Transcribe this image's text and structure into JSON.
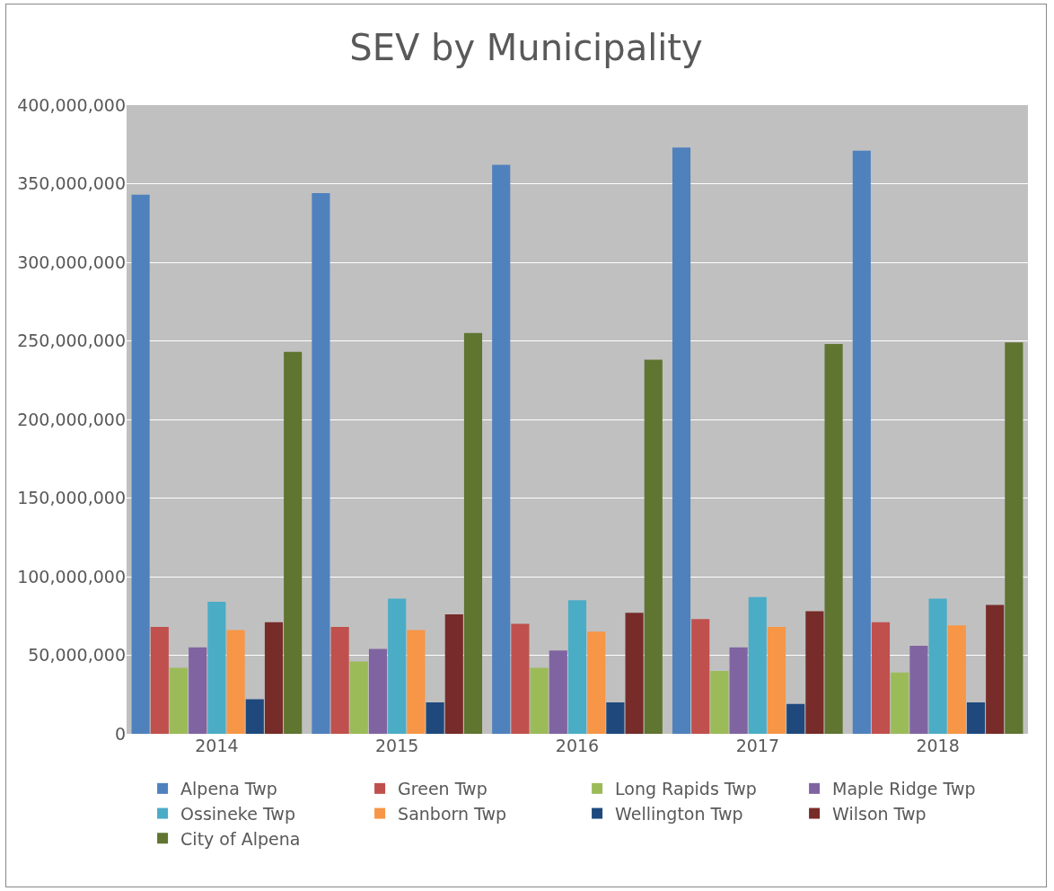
{
  "chart_data": {
    "type": "bar",
    "title": "SEV by Municipality",
    "categories": [
      "2014",
      "2015",
      "2016",
      "2017",
      "2018"
    ],
    "series": [
      {
        "name": "Alpena Twp",
        "color": "#4f81bd",
        "values": [
          343000000,
          344000000,
          362000000,
          373000000,
          371000000
        ]
      },
      {
        "name": "Green Twp",
        "color": "#c0504d",
        "values": [
          68000000,
          68000000,
          70000000,
          73000000,
          71000000
        ]
      },
      {
        "name": "Long Rapids Twp",
        "color": "#9bbb59",
        "values": [
          42000000,
          46000000,
          42000000,
          40000000,
          39000000
        ]
      },
      {
        "name": "Maple Ridge Twp",
        "color": "#8064a2",
        "values": [
          55000000,
          54000000,
          53000000,
          55000000,
          56000000
        ]
      },
      {
        "name": "Ossineke Twp",
        "color": "#4bacc6",
        "values": [
          84000000,
          86000000,
          85000000,
          87000000,
          86000000
        ]
      },
      {
        "name": "Sanborn Twp",
        "color": "#f79646",
        "values": [
          66000000,
          66000000,
          65000000,
          68000000,
          69000000
        ]
      },
      {
        "name": "Wellington Twp",
        "color": "#1f497d",
        "values": [
          22000000,
          20000000,
          20000000,
          19000000,
          20000000
        ]
      },
      {
        "name": "Wilson Twp",
        "color": "#772c2a",
        "values": [
          71000000,
          76000000,
          77000000,
          78000000,
          82000000
        ]
      },
      {
        "name": "City of Alpena",
        "color": "#5f7530",
        "values": [
          243000000,
          255000000,
          238000000,
          248000000,
          249000000
        ]
      }
    ],
    "ylim": [
      0,
      400000000
    ],
    "yticks": [
      {
        "value": 0,
        "label": "0"
      },
      {
        "value": 50000000,
        "label": "50,000,000"
      },
      {
        "value": 100000000,
        "label": "100,000,000"
      },
      {
        "value": 150000000,
        "label": "150,000,000"
      },
      {
        "value": 200000000,
        "label": "200,000,000"
      },
      {
        "value": 250000000,
        "label": "250,000,000"
      },
      {
        "value": 300000000,
        "label": "300,000,000"
      },
      {
        "value": 350000000,
        "label": "350,000,000"
      },
      {
        "value": 400000000,
        "label": "400,000,000"
      }
    ],
    "grid": "y",
    "legend": "bottom"
  }
}
